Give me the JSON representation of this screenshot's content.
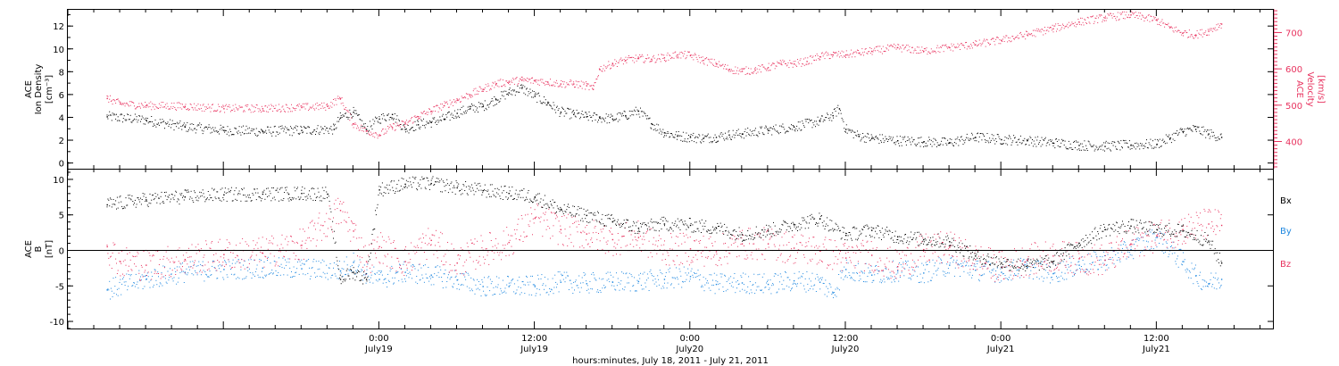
{
  "colors": {
    "black": "#000000",
    "red": "#e8335f",
    "blue": "#1f88e0"
  },
  "chart_data": [
    {
      "type": "scatter",
      "panel": "top",
      "ylabel_left": [
        "ACE",
        "Ion Density",
        "[cm⁻³]"
      ],
      "ylabel_right": [
        "ACE",
        "Velocity",
        "[km/s]"
      ],
      "ylim_left": [
        -0.5,
        13.5
      ],
      "yticks_left": [
        "0",
        "2",
        "4",
        "6",
        "8",
        "10",
        "12"
      ],
      "ylim_right": [
        325,
        765
      ],
      "yticks_right": [
        "400",
        "500",
        "600",
        "700"
      ],
      "series": [
        {
          "name": "Ion Density",
          "axis": "left",
          "color": "#000000",
          "points": [
            [
              -21,
              4.1
            ],
            [
              -18,
              3.8
            ],
            [
              -15,
              3.2
            ],
            [
              -12,
              2.9
            ],
            [
              -9,
              2.8
            ],
            [
              -6,
              2.9
            ],
            [
              -3.5,
              3.0
            ],
            [
              -3,
              4.0
            ],
            [
              -2,
              4.5
            ],
            [
              -1,
              3.0
            ],
            [
              0,
              3.9
            ],
            [
              1,
              4.3
            ],
            [
              2,
              3.0
            ],
            [
              3,
              3.4
            ],
            [
              4,
              3.6
            ],
            [
              5,
              3.9
            ],
            [
              6,
              4.4
            ],
            [
              7,
              4.8
            ],
            [
              8,
              5.0
            ],
            [
              9,
              5.6
            ],
            [
              10,
              6.2
            ],
            [
              11,
              6.6
            ],
            [
              12,
              5.9
            ],
            [
              13,
              5.3
            ],
            [
              14,
              4.5
            ],
            [
              15,
              4.3
            ],
            [
              16,
              4.1
            ],
            [
              17,
              4.0
            ],
            [
              18,
              3.9
            ],
            [
              19,
              4.2
            ],
            [
              20,
              4.6
            ],
            [
              21,
              3.5
            ],
            [
              22,
              2.7
            ],
            [
              23,
              2.4
            ],
            [
              24,
              2.3
            ],
            [
              25,
              2.2
            ],
            [
              26,
              2.3
            ],
            [
              27,
              2.5
            ],
            [
              28,
              2.6
            ],
            [
              30,
              2.9
            ],
            [
              32,
              3.2
            ],
            [
              34,
              3.7
            ],
            [
              35,
              4.2
            ],
            [
              35.5,
              4.8
            ],
            [
              36,
              3.0
            ],
            [
              37,
              2.4
            ],
            [
              38,
              2.2
            ],
            [
              40,
              2.0
            ],
            [
              42,
              1.9
            ],
            [
              44,
              1.8
            ],
            [
              46,
              2.3
            ],
            [
              48,
              2.1
            ],
            [
              50,
              2.0
            ],
            [
              52,
              1.8
            ],
            [
              54,
              1.6
            ],
            [
              56,
              1.5
            ],
            [
              58,
              1.6
            ],
            [
              60,
              1.7
            ],
            [
              61,
              2.2
            ],
            [
              62,
              2.8
            ],
            [
              63,
              3.0
            ],
            [
              64,
              2.6
            ],
            [
              65,
              2.3
            ]
          ]
        },
        {
          "name": "Velocity",
          "axis": "right",
          "color": "#e8335f",
          "points": [
            [
              -21,
              520
            ],
            [
              -20,
              505
            ],
            [
              -18,
              500
            ],
            [
              -15,
              498
            ],
            [
              -12,
              492
            ],
            [
              -9,
              492
            ],
            [
              -6,
              495
            ],
            [
              -4,
              498
            ],
            [
              -3,
              520
            ],
            [
              -2,
              450
            ],
            [
              -1,
              430
            ],
            [
              0,
              420
            ],
            [
              1,
              440
            ],
            [
              2,
              450
            ],
            [
              3,
              470
            ],
            [
              4,
              485
            ],
            [
              5,
              500
            ],
            [
              6,
              515
            ],
            [
              7,
              530
            ],
            [
              8,
              545
            ],
            [
              9,
              560
            ],
            [
              10,
              565
            ],
            [
              11,
              570
            ],
            [
              12,
              568
            ],
            [
              13,
              565
            ],
            [
              14,
              560
            ],
            [
              15,
              560
            ],
            [
              16,
              555
            ],
            [
              16.5,
              545
            ],
            [
              17,
              600
            ],
            [
              18,
              615
            ],
            [
              19,
              625
            ],
            [
              20,
              630
            ],
            [
              21,
              628
            ],
            [
              22,
              632
            ],
            [
              23,
              640
            ],
            [
              24,
              638
            ],
            [
              25,
              625
            ],
            [
              26,
              615
            ],
            [
              27,
              600
            ],
            [
              28,
              595
            ],
            [
              29,
              598
            ],
            [
              30,
              605
            ],
            [
              31,
              615
            ],
            [
              32,
              615
            ],
            [
              33,
              622
            ],
            [
              34,
              635
            ],
            [
              35,
              640
            ],
            [
              36,
              640
            ],
            [
              37,
              645
            ],
            [
              38,
              650
            ],
            [
              40,
              660
            ],
            [
              42,
              650
            ],
            [
              44,
              660
            ],
            [
              46,
              668
            ],
            [
              48,
              680
            ],
            [
              50,
              695
            ],
            [
              52,
              712
            ],
            [
              54,
              730
            ],
            [
              56,
              742
            ],
            [
              58,
              750
            ],
            [
              60,
              735
            ],
            [
              61,
              715
            ],
            [
              62,
              700
            ],
            [
              63,
              695
            ],
            [
              64,
              705
            ],
            [
              65,
              725
            ]
          ]
        }
      ]
    },
    {
      "type": "scatter",
      "panel": "bottom",
      "ylabel": [
        "ACE",
        "B",
        "[nT]"
      ],
      "ylim": [
        -11,
        11.5
      ],
      "yticks": [
        "-10",
        "-5",
        "0",
        "5",
        "10"
      ],
      "legend": [
        {
          "label": "Bx",
          "color": "#000000"
        },
        {
          "label": "By",
          "color": "#1f88e0"
        },
        {
          "label": "Bz",
          "color": "#e8335f"
        }
      ],
      "series": [
        {
          "name": "Bx",
          "color": "#000000",
          "points": [
            [
              -21,
              6.5
            ],
            [
              -18,
              7.2
            ],
            [
              -15,
              7.6
            ],
            [
              -12,
              7.9
            ],
            [
              -9,
              8.0
            ],
            [
              -7,
              8.0
            ],
            [
              -6,
              8.1
            ],
            [
              -4,
              8.0
            ],
            [
              -3,
              -4.0
            ],
            [
              -2,
              -3.0
            ],
            [
              -1,
              -4.0
            ],
            [
              0,
              8.6
            ],
            [
              2,
              9.4
            ],
            [
              4,
              9.5
            ],
            [
              6,
              8.9
            ],
            [
              8,
              8.5
            ],
            [
              10,
              8.1
            ],
            [
              12,
              7.6
            ],
            [
              14,
              5.8
            ],
            [
              16,
              5.0
            ],
            [
              18,
              4.1
            ],
            [
              20,
              3.2
            ],
            [
              22,
              3.8
            ],
            [
              24,
              3.6
            ],
            [
              26,
              3.2
            ],
            [
              28,
              2.3
            ],
            [
              30,
              2.8
            ],
            [
              32,
              3.7
            ],
            [
              34,
              4.5
            ],
            [
              36,
              2.2
            ],
            [
              38,
              2.9
            ],
            [
              40,
              2.0
            ],
            [
              42,
              1.6
            ],
            [
              44,
              1.3
            ],
            [
              46,
              -0.7
            ],
            [
              48,
              -1.7
            ],
            [
              50,
              -2.1
            ],
            [
              52,
              -1.5
            ],
            [
              54,
              1.1
            ],
            [
              56,
              3.0
            ],
            [
              58,
              3.5
            ],
            [
              60,
              3.0
            ],
            [
              62,
              2.8
            ],
            [
              64,
              1.4
            ],
            [
              65,
              -1.7
            ]
          ]
        },
        {
          "name": "By",
          "color": "#1f88e0",
          "points": [
            [
              -21,
              -5.5
            ],
            [
              -18,
              -4.0
            ],
            [
              -15,
              -3.0
            ],
            [
              -12,
              -2.6
            ],
            [
              -9,
              -2.4
            ],
            [
              -6,
              -2.5
            ],
            [
              -3,
              -2.8
            ],
            [
              -2,
              -1.6
            ],
            [
              -1,
              -3.2
            ],
            [
              0,
              -4.0
            ],
            [
              2,
              -3.0
            ],
            [
              4,
              -3.4
            ],
            [
              6,
              -4.1
            ],
            [
              8,
              -5.0
            ],
            [
              10,
              -5.0
            ],
            [
              12,
              -5.0
            ],
            [
              14,
              -4.4
            ],
            [
              16,
              -4.6
            ],
            [
              18,
              -4.4
            ],
            [
              20,
              -4.3
            ],
            [
              22,
              -4.0
            ],
            [
              24,
              -3.6
            ],
            [
              26,
              -4.7
            ],
            [
              28,
              -4.5
            ],
            [
              30,
              -4.7
            ],
            [
              32,
              -4.2
            ],
            [
              34,
              -4.4
            ],
            [
              35,
              -5.9
            ],
            [
              36,
              -2.6
            ],
            [
              38,
              -3.4
            ],
            [
              40,
              -2.8
            ],
            [
              42,
              -3.1
            ],
            [
              44,
              -2.0
            ],
            [
              46,
              -2.7
            ],
            [
              48,
              -3.0
            ],
            [
              50,
              -2.3
            ],
            [
              52,
              -3.2
            ],
            [
              54,
              -2.0
            ],
            [
              56,
              -1.3
            ],
            [
              58,
              0.2
            ],
            [
              60,
              2.0
            ],
            [
              62,
              -1.5
            ],
            [
              63,
              -3.5
            ],
            [
              64,
              -4.6
            ],
            [
              65,
              -4.0
            ]
          ]
        },
        {
          "name": "Bz",
          "color": "#e8335f",
          "points": [
            [
              -21,
              0.6
            ],
            [
              -20,
              -1.5
            ],
            [
              -18,
              -2.0
            ],
            [
              -15,
              -1.2
            ],
            [
              -12,
              -0.5
            ],
            [
              -9,
              -0.3
            ],
            [
              -6,
              0.8
            ],
            [
              -3,
              5.7
            ],
            [
              -2,
              2.8
            ],
            [
              -1,
              -1.5
            ],
            [
              0,
              0.6
            ],
            [
              2,
              -1.5
            ],
            [
              4,
              1.5
            ],
            [
              6,
              -1.7
            ],
            [
              8,
              0.1
            ],
            [
              10,
              1.2
            ],
            [
              12,
              4.6
            ],
            [
              14,
              3.0
            ],
            [
              16,
              2.4
            ],
            [
              18,
              1.6
            ],
            [
              20,
              1.9
            ],
            [
              22,
              0.1
            ],
            [
              24,
              0.3
            ],
            [
              26,
              -0.1
            ],
            [
              28,
              1.0
            ],
            [
              30,
              1.0
            ],
            [
              32,
              0.4
            ],
            [
              34,
              0.0
            ],
            [
              36,
              -1.0
            ],
            [
              38,
              -0.6
            ],
            [
              40,
              -2.2
            ],
            [
              42,
              0.2
            ],
            [
              44,
              0.5
            ],
            [
              46,
              -1.2
            ],
            [
              48,
              -2.3
            ],
            [
              50,
              -1.3
            ],
            [
              52,
              -0.7
            ],
            [
              54,
              -1.1
            ],
            [
              56,
              -1.3
            ],
            [
              58,
              1.0
            ],
            [
              60,
              2.1
            ],
            [
              62,
              3.0
            ],
            [
              64,
              3.8
            ],
            [
              65,
              3.6
            ]
          ]
        }
      ],
      "hline": 0
    }
  ],
  "x_axis": {
    "range_hours": [
      -24,
      69
    ],
    "tick_labels": [
      {
        "time": "0:00",
        "date": "July19"
      },
      {
        "time": "12:00",
        "date": "July19"
      },
      {
        "time": "0:00",
        "date": "July20"
      },
      {
        "time": "12:00",
        "date": "July20"
      },
      {
        "time": "0:00",
        "date": "July21"
      },
      {
        "time": "12:00",
        "date": "July21"
      }
    ],
    "label": "hours:minutes, July 18, 2011 - July 21, 2011"
  }
}
